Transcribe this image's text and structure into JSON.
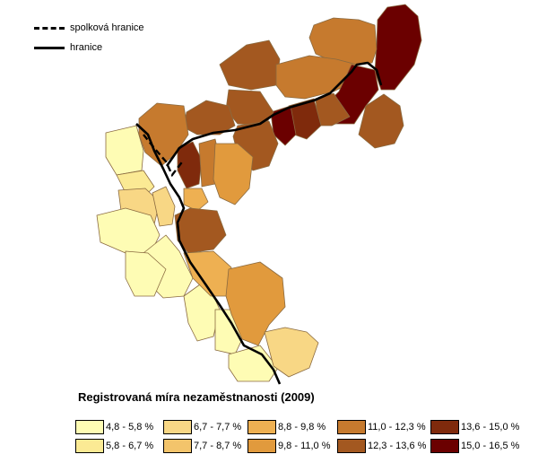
{
  "line_legend": [
    {
      "label": "spolková hranice",
      "style": "dashed"
    },
    {
      "label": "hranice",
      "style": "solid"
    }
  ],
  "legend_title": "Registrovaná míra nezaměstnanosti (2009)",
  "classes": [
    {
      "label": "4,8 - 5,8 %",
      "color": "#fefcb4"
    },
    {
      "label": "5,8 - 6,7 %",
      "color": "#fbea94"
    },
    {
      "label": "6,7 - 7,7 %",
      "color": "#f8d785"
    },
    {
      "label": "7,7 - 8,7 %",
      "color": "#f3c46b"
    },
    {
      "label": "8,8 - 9,8 %",
      "color": "#eeb052"
    },
    {
      "label": "9,8 - 11,0 %",
      "color": "#e19a3d"
    },
    {
      "label": "11,0 - 12,3 %",
      "color": "#c67a2e"
    },
    {
      "label": "12,3 - 13,6 %",
      "color": "#a35820"
    },
    {
      "label": "13,6 - 15,0 %",
      "color": "#7f2a0c"
    },
    {
      "label": "15,0 - 16,5 %",
      "color": "#6b0000"
    }
  ]
}
